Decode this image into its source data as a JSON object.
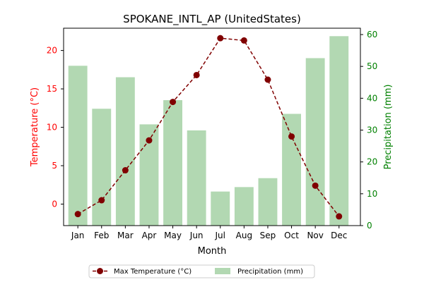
{
  "chart_data": {
    "type": "bar+line",
    "title": "SPOKANE_INTL_AP (UnitedStates)",
    "xlabel": "Month",
    "ylabel_left": "Temperature (°C)",
    "ylabel_right": "Precipitation (mm)",
    "categories": [
      "Jan",
      "Feb",
      "Mar",
      "Apr",
      "May",
      "Jun",
      "Jul",
      "Aug",
      "Sep",
      "Oct",
      "Nov",
      "Dec"
    ],
    "ylim_left": [
      -2.8,
      22.9
    ],
    "ylim_right": [
      0,
      62
    ],
    "yticks_left": [
      0,
      5,
      10,
      15,
      20
    ],
    "yticks_right": [
      0,
      10,
      20,
      30,
      40,
      50,
      60
    ],
    "series": [
      {
        "name": "Max Temperature (°C)",
        "kind": "line",
        "axis": "left",
        "color": "#800000",
        "style": "dashed",
        "marker": "circle",
        "values": [
          -1.3,
          0.5,
          4.4,
          8.3,
          13.3,
          16.8,
          21.6,
          21.3,
          16.2,
          8.8,
          2.4,
          -1.6
        ]
      },
      {
        "name": "Precipitation (mm)",
        "kind": "bar",
        "axis": "right",
        "color": "#b2d8b2",
        "values": [
          50.2,
          36.7,
          46.6,
          31.8,
          39.4,
          29.9,
          10.7,
          12.1,
          14.9,
          35.1,
          52.6,
          59.5
        ]
      }
    ],
    "legend_position": "bottom-center",
    "left_axis_color": "#ff0000",
    "right_axis_color": "#008000",
    "grid": false
  }
}
